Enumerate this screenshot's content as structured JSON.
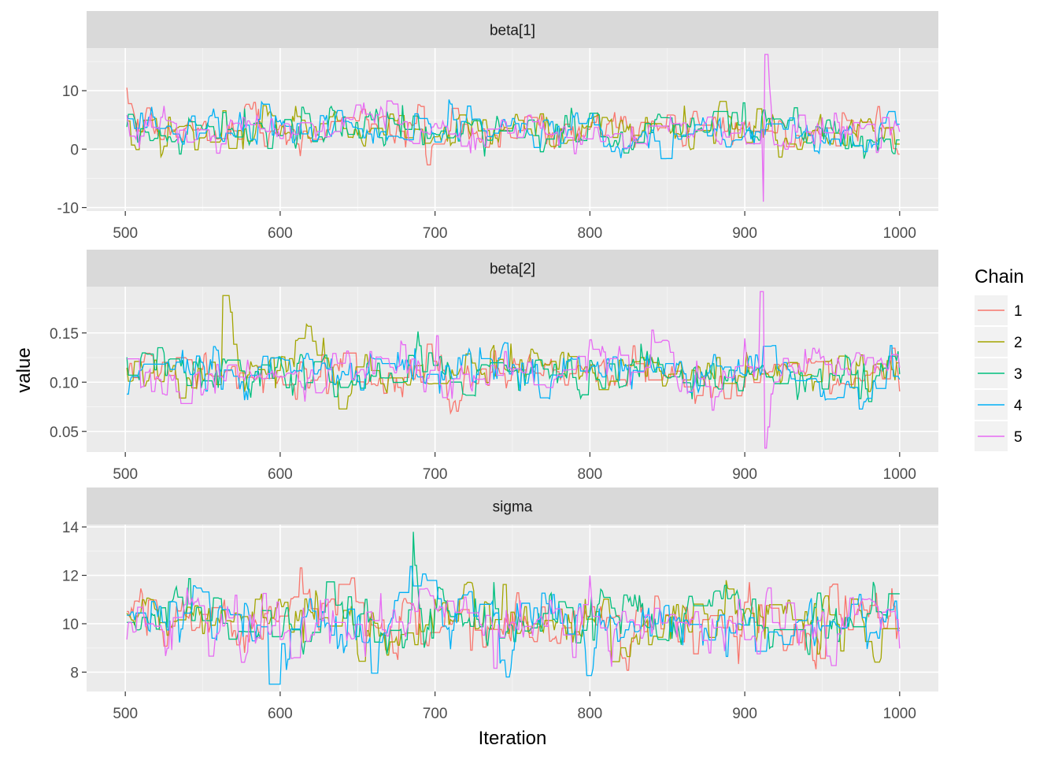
{
  "chart_data": {
    "type": "line",
    "xlabel": "Iteration",
    "ylabel": "value",
    "x_range": [
      501,
      1000
    ],
    "xlim": [
      475,
      1025
    ],
    "x_ticks": [
      500,
      600,
      700,
      800,
      900,
      1000
    ],
    "legend": {
      "title": "Chain",
      "placement": "right",
      "entries": [
        "1",
        "2",
        "3",
        "4",
        "5"
      ],
      "colors": [
        "#F8766D",
        "#A3A500",
        "#00BF7D",
        "#00B0F6",
        "#E76BF3"
      ]
    },
    "panel_strip_color": "#d9d9d9",
    "panel_background": "#ebebeb",
    "grid": true,
    "panels": [
      {
        "name": "beta[1]",
        "ylim": [
          -10.6,
          17.3
        ],
        "y_ticks": [
          -10,
          0,
          10
        ],
        "y_tick_labels": [
          "-10",
          "0",
          "10"
        ],
        "series_mean": 3.3,
        "series_sd": 2.6,
        "series_min": -9,
        "series_max": 16.2
      },
      {
        "name": "beta[2]",
        "ylim": [
          0.029,
          0.197
        ],
        "y_ticks": [
          0.05,
          0.1,
          0.15
        ],
        "y_tick_labels": [
          "0.05",
          "0.10",
          "0.15"
        ],
        "series_mean": 0.111,
        "series_sd": 0.018,
        "series_min": 0.033,
        "series_max": 0.192
      },
      {
        "name": "sigma",
        "ylim": [
          7.2,
          14.1
        ],
        "y_ticks": [
          8,
          10,
          12,
          14
        ],
        "y_tick_labels": [
          "8",
          "10",
          "12",
          "14"
        ],
        "series_mean": 10.1,
        "series_sd": 0.95,
        "series_min": 7.5,
        "series_max": 13.8
      }
    ],
    "notable_peaks": [
      {
        "panel": "beta[1]",
        "chain": "5",
        "iteration": 913,
        "value": 16.2
      },
      {
        "panel": "beta[1]",
        "chain": "5",
        "iteration": 912,
        "value": -9.0
      },
      {
        "panel": "beta[2]",
        "chain": "5",
        "iteration": 910,
        "value": 0.192
      },
      {
        "panel": "beta[2]",
        "chain": "5",
        "iteration": 913,
        "value": 0.033
      },
      {
        "panel": "beta[2]",
        "chain": "2",
        "iteration": 563,
        "value": 0.188
      },
      {
        "panel": "sigma",
        "chain": "3",
        "iteration": 686,
        "value": 13.8
      },
      {
        "panel": "sigma",
        "chain": "4",
        "iteration": 593,
        "value": 7.5
      }
    ]
  }
}
